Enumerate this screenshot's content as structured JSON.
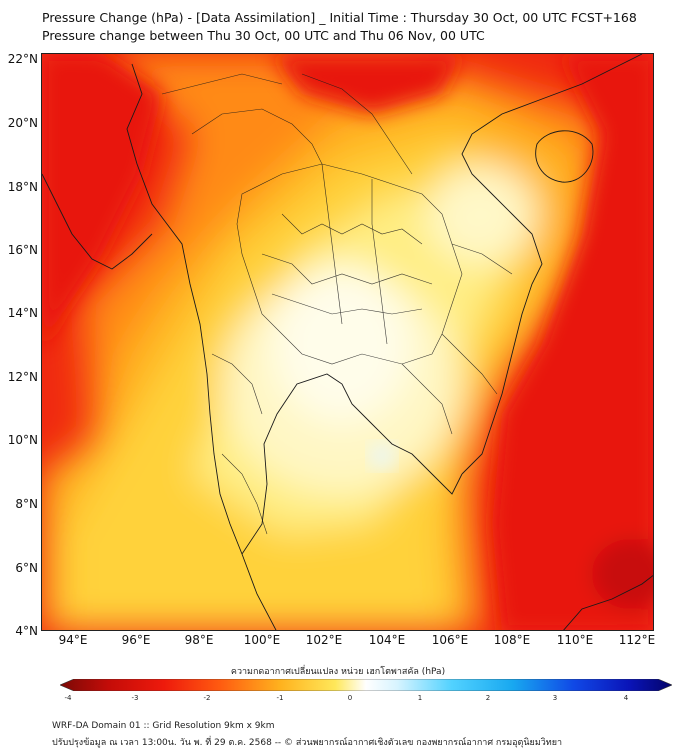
{
  "header": {
    "title_line1": "Pressure Change (hPa) - [Data Assimilation] _ Initial Time : Thursday 30 Oct, 00 UTC FCST+168",
    "title_line2": "Pressure change between Thu 30 Oct, 00 UTC and Thu 06 Nov, 00 UTC"
  },
  "map": {
    "lat_labels": [
      "22°N",
      "20°N",
      "18°N",
      "16°N",
      "14°N",
      "12°N",
      "10°N",
      "8°N",
      "6°N",
      "4°N"
    ],
    "lon_labels": [
      "94°E",
      "96°E",
      "98°E",
      "100°E",
      "102°E",
      "104°E",
      "106°E",
      "108°E",
      "110°E",
      "112°E"
    ],
    "lat_range": [
      4,
      22.2
    ],
    "lon_range": [
      93,
      112.5
    ],
    "field": "pressure change (hPa)",
    "colors": {
      "strong_negative": "#e8120c",
      "moderate_negative": "#ff7a10",
      "weak_negative": "#ffd23a",
      "near_zero": "#fffde8",
      "border": "#1a1a1a"
    }
  },
  "colorbar": {
    "title": "ความกดอากาศเปลี่ยนแปลง หน่วย เฮกโตพาสคัล (hPa)",
    "tick_labels": [
      "-4",
      "-3",
      "-2",
      "-1",
      "0",
      "1",
      "2",
      "3",
      "4"
    ],
    "min": -4,
    "max": 4
  },
  "footer": {
    "line1": "WRF-DA Domain 01 :: Grid Resolution 9km x 9km",
    "line2": "ปรับปรุงข้อมูล ณ เวลา 13:00น. วัน พ. ที่ 29 ต.ค. 2568 -- © ส่วนพยากรณ์อากาศเชิงตัวเลข กองพยากรณ์อากาศ กรมอุตุนิยมวิทยา"
  }
}
